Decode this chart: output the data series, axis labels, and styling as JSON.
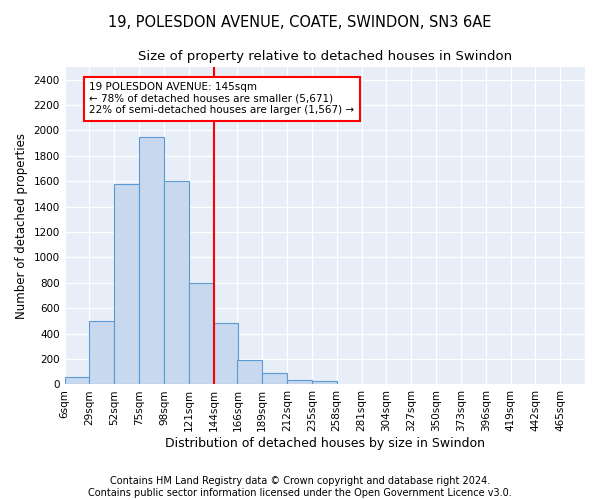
{
  "title": "19, POLESDON AVENUE, COATE, SWINDON, SN3 6AE",
  "subtitle": "Size of property relative to detached houses in Swindon",
  "xlabel": "Distribution of detached houses by size in Swindon",
  "ylabel": "Number of detached properties",
  "footer_line1": "Contains HM Land Registry data © Crown copyright and database right 2024.",
  "footer_line2": "Contains public sector information licensed under the Open Government Licence v3.0.",
  "annotation_line1": "19 POLESDON AVENUE: 145sqm",
  "annotation_line2": "← 78% of detached houses are smaller (5,671)",
  "annotation_line3": "22% of semi-detached houses are larger (1,567) →",
  "bar_color": "#c8d8ee",
  "bar_edge_color": "#5b9bd5",
  "reference_line_color": "red",
  "reference_line_x": 144,
  "categories": [
    "6sqm",
    "29sqm",
    "52sqm",
    "75sqm",
    "98sqm",
    "121sqm",
    "144sqm",
    "166sqm",
    "189sqm",
    "212sqm",
    "235sqm",
    "258sqm",
    "281sqm",
    "304sqm",
    "327sqm",
    "350sqm",
    "373sqm",
    "396sqm",
    "419sqm",
    "442sqm",
    "465sqm"
  ],
  "bin_edges": [
    6,
    29,
    52,
    75,
    98,
    121,
    144,
    166,
    189,
    212,
    235,
    258,
    281,
    304,
    327,
    350,
    373,
    396,
    419,
    442,
    465
  ],
  "bin_width": 23,
  "values": [
    55,
    500,
    1580,
    1950,
    1600,
    800,
    480,
    195,
    90,
    35,
    30,
    0,
    0,
    0,
    0,
    0,
    0,
    0,
    0,
    0
  ],
  "ylim": [
    0,
    2500
  ],
  "yticks": [
    0,
    200,
    400,
    600,
    800,
    1000,
    1200,
    1400,
    1600,
    1800,
    2000,
    2200,
    2400
  ],
  "title_fontsize": 10.5,
  "subtitle_fontsize": 9.5,
  "xlabel_fontsize": 9,
  "ylabel_fontsize": 8.5,
  "tick_fontsize": 7.5,
  "annotation_fontsize": 7.5,
  "footer_fontsize": 7,
  "figure_bg": "#ffffff",
  "plot_bg_color": "#e8eef8"
}
